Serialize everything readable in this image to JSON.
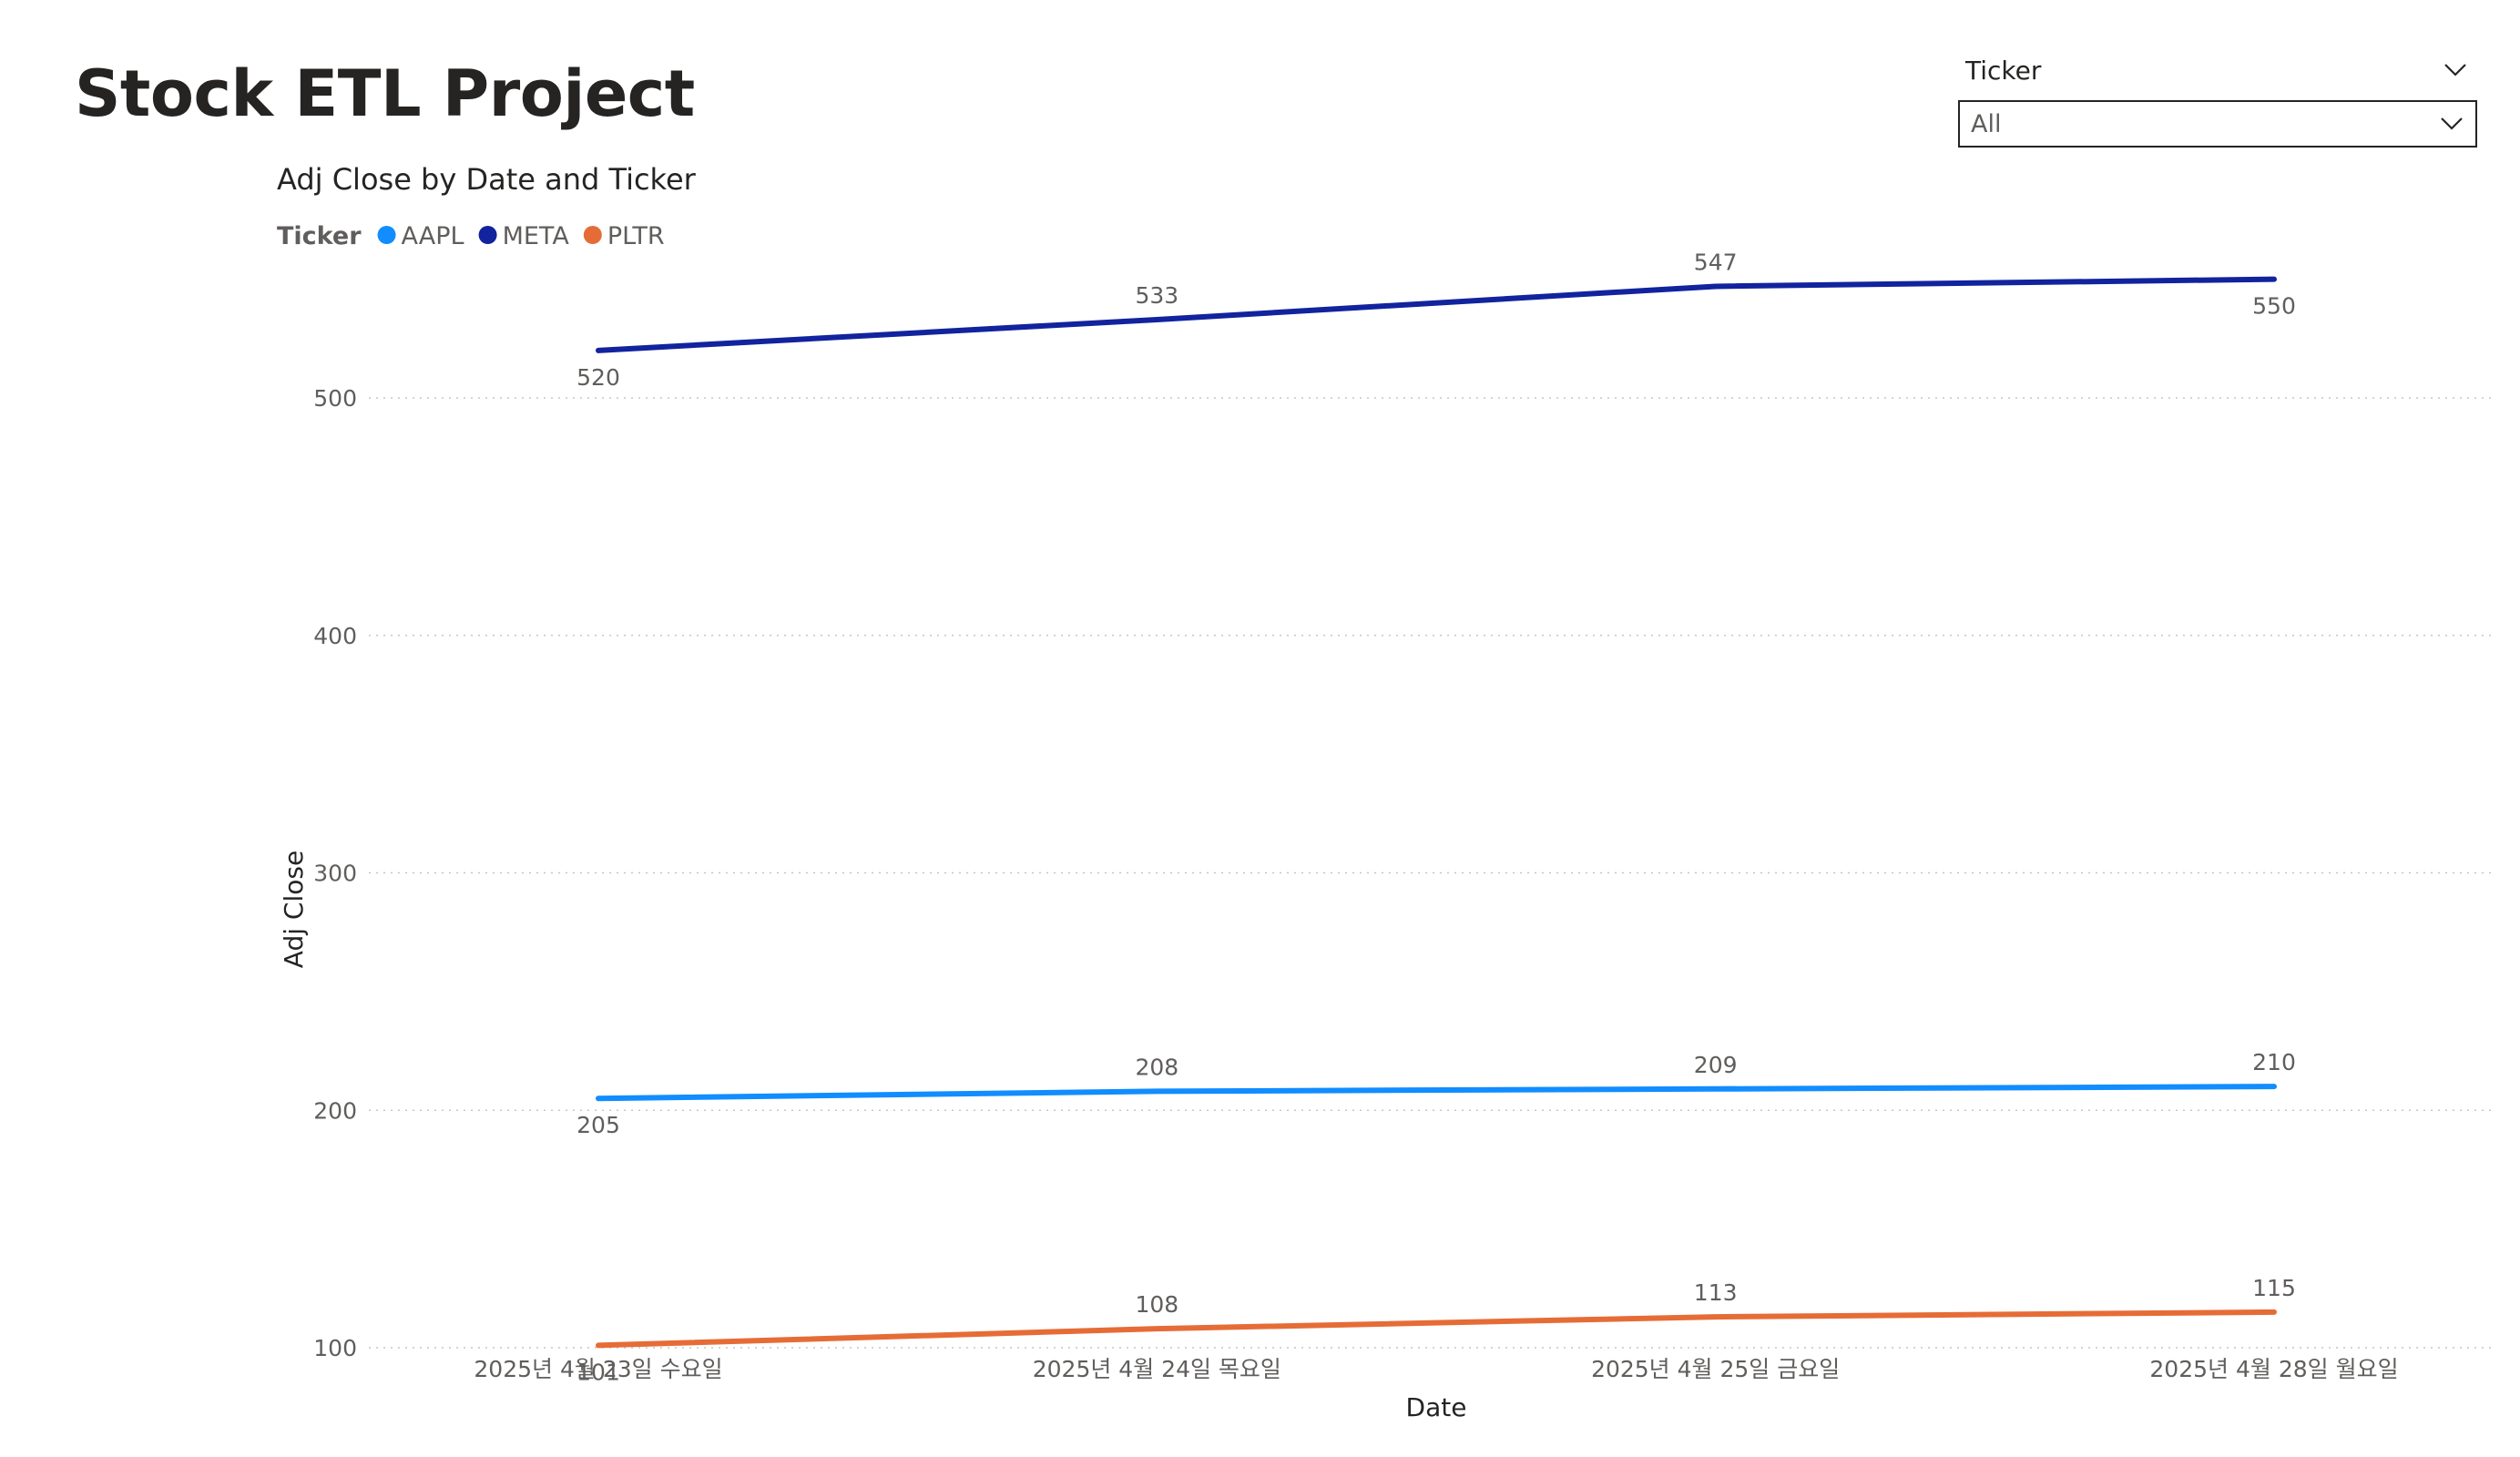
{
  "page": {
    "title": "Stock ETL Project"
  },
  "slicer": {
    "label": "Ticker",
    "selected": "All"
  },
  "chart_data": {
    "type": "line",
    "title": "Adj Close by Date and Ticker",
    "legend_title": "Ticker",
    "legend_position": "top-left",
    "xlabel": "Date",
    "ylabel": "Adj Close",
    "categories": [
      "2025년 4월 23일 수요일",
      "2025년 4월 24일 목요일",
      "2025년 4월 25일 금요일",
      "2025년 4월 28일 월요일"
    ],
    "yticks": [
      100,
      200,
      300,
      400,
      500
    ],
    "ylim": [
      100,
      550
    ],
    "grid": true,
    "series": [
      {
        "name": "AAPL",
        "color": "#118DFF",
        "values": [
          205,
          208,
          209,
          210
        ]
      },
      {
        "name": "META",
        "color": "#12239E",
        "values": [
          520,
          533,
          547,
          550
        ]
      },
      {
        "name": "PLTR",
        "color": "#E66C37",
        "values": [
          101,
          108,
          113,
          115
        ]
      }
    ]
  }
}
